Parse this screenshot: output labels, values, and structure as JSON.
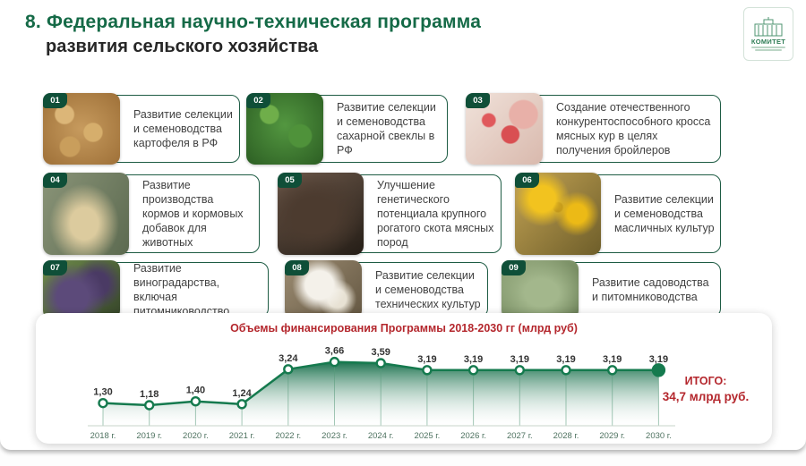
{
  "header": {
    "title_line1": "8. Федеральная научно-техническая программа",
    "title_line2": "развития сельского хозяйства",
    "logo_text": "КОМИТЕТ"
  },
  "cards": [
    {
      "num": "01",
      "image": "potatoes",
      "text": "Развитие селекции и семеноводства картофеля в РФ"
    },
    {
      "num": "02",
      "image": "sugar-beet",
      "text": "Развитие селекции и семеноводства сахарной свеклы в РФ"
    },
    {
      "num": "03",
      "image": "chickens",
      "text": "Создание отечественного конкурентоспособного кросса мясных кур в целях получения бройлеров"
    },
    {
      "num": "04",
      "image": "animal-feed",
      "text": "Развитие производства кормов и кормовых добавок для животных"
    },
    {
      "num": "05",
      "image": "calf",
      "text": "Улучшение генетического потенциала крупного рогатого скота мясных пород"
    },
    {
      "num": "06",
      "image": "sunflowers",
      "text": "Развитие селекции и семеноводства масличных культур"
    },
    {
      "num": "07",
      "image": "grapes",
      "text": "Развитие виноградарства, включая питомниководство"
    },
    {
      "num": "08",
      "image": "cotton",
      "text": "Развитие селекции и семеноводства технических культур"
    },
    {
      "num": "09",
      "image": "apple",
      "text": "Развитие садоводства и питомниководства"
    }
  ],
  "chart_data": {
    "type": "area",
    "title": "Объемы финансирования Программы 2018-2030 гг (млрд руб)",
    "x_labels": [
      "2018 г.",
      "2019 г.",
      "2020 г.",
      "2021 г.",
      "2022 г.",
      "2023 г.",
      "2024 г.",
      "2025 г.",
      "2026 г.",
      "2027 г.",
      "2028 г.",
      "2029 г.",
      "2030 г."
    ],
    "values": [
      1.3,
      1.18,
      1.4,
      1.24,
      3.24,
      3.66,
      3.59,
      3.19,
      3.19,
      3.19,
      3.19,
      3.19,
      3.19
    ],
    "point_labels": [
      "1,30",
      "1,18",
      "1,40",
      "1,24",
      "3,24",
      "3,66",
      "3,59",
      "3,19",
      "3,19",
      "3,19",
      "3,19",
      "3,19",
      "3,19"
    ],
    "total_label": "ИТОГО:",
    "total_value": "34,7 млрд руб.",
    "line_color": "#157a4e",
    "label_color": "#333333",
    "axis_label_color": "#4f7361",
    "ylim": [
      0,
      4
    ],
    "legend": "none",
    "grid": "vertical-guides"
  }
}
